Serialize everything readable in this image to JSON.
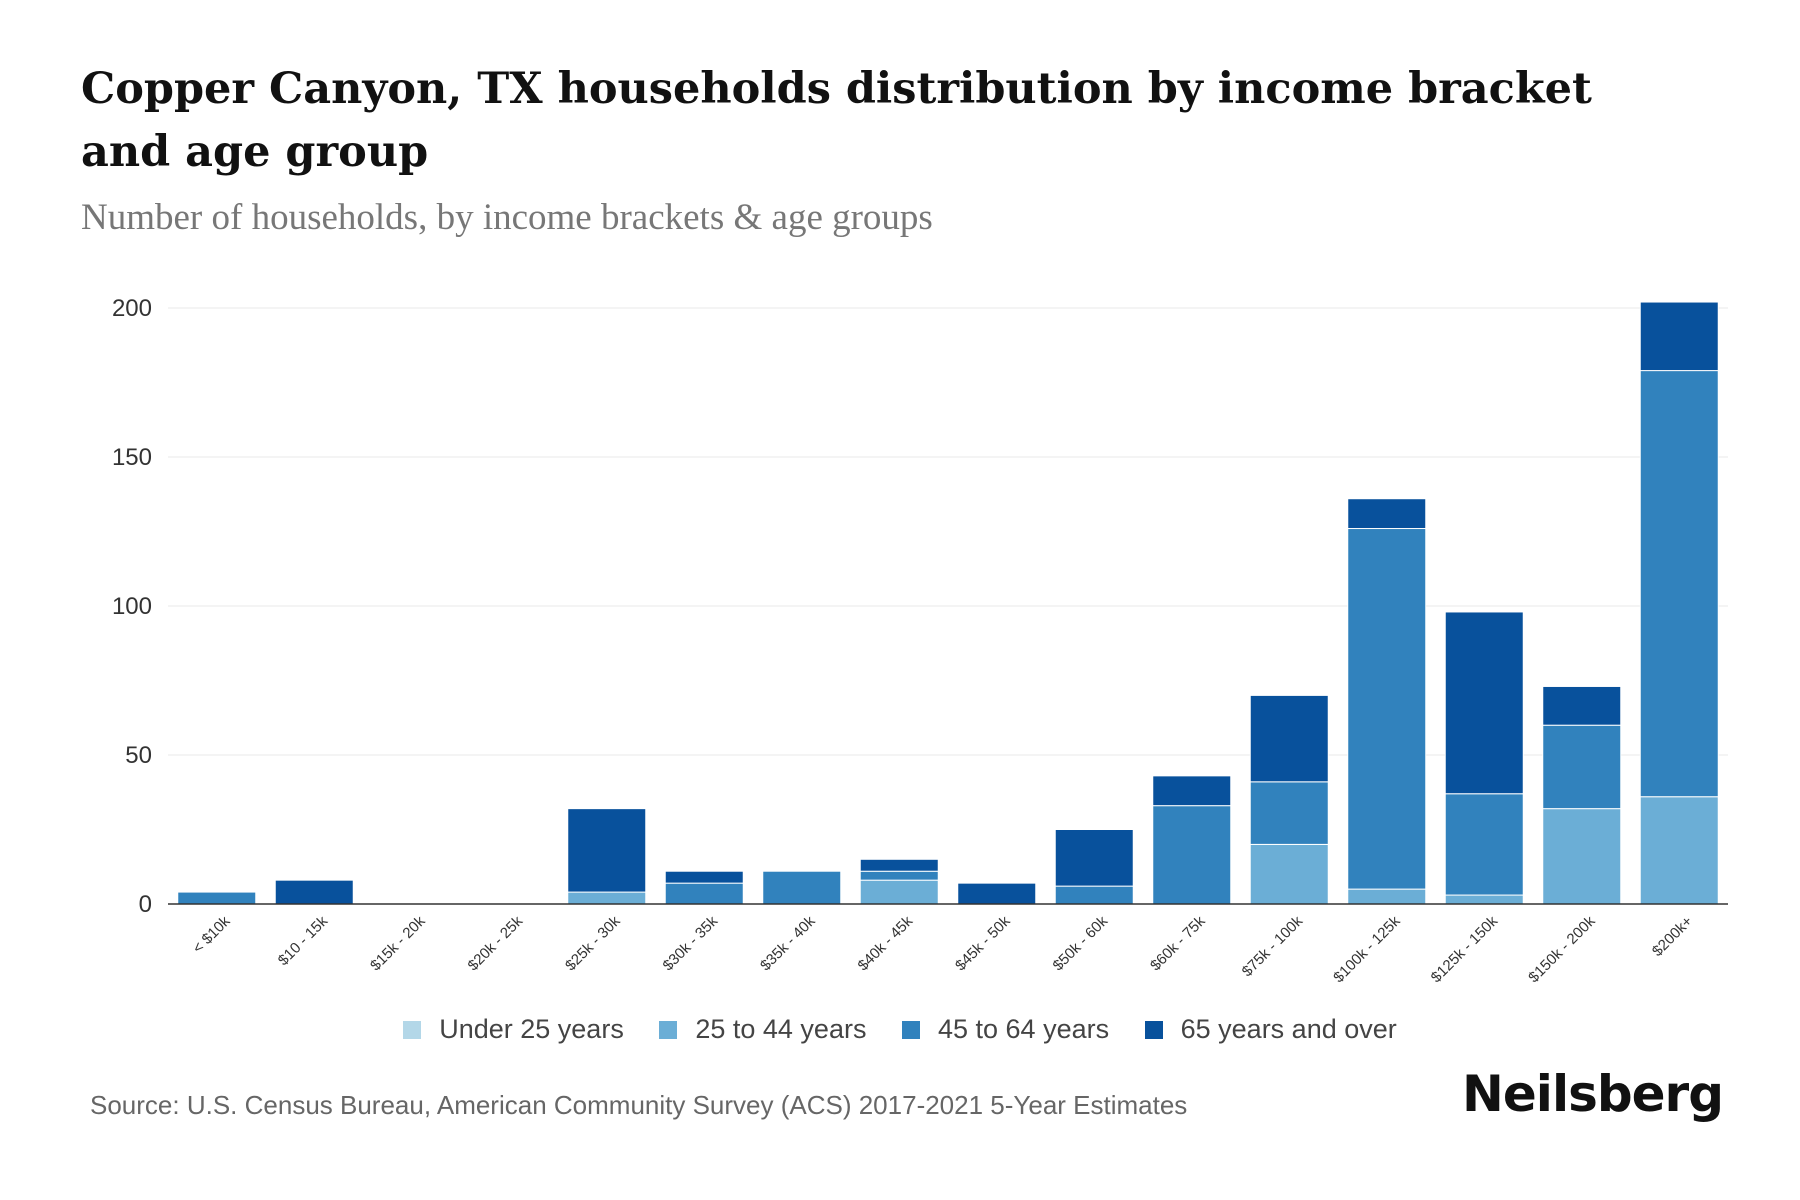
{
  "title": "Copper Canyon, TX households distribution by income bracket and age group",
  "subtitle": "Number of households, by income brackets & age groups",
  "source": "Source: U.S. Census Bureau, American Community Survey (ACS) 2017-2021 5-Year Estimates",
  "brand": "Neilsberg",
  "colors": {
    "under25": "#b3d7e8",
    "age25to44": "#6baed6",
    "age45to64": "#3182bd",
    "age65plus": "#08519c",
    "grid": "#e8e8e8",
    "axis": "#333333"
  },
  "legend": [
    {
      "label": "Under 25 years",
      "color": "#b3d7e8"
    },
    {
      "label": "25 to 44 years",
      "color": "#6baed6"
    },
    {
      "label": "45 to 64 years",
      "color": "#3182bd"
    },
    {
      "label": "65 years and over",
      "color": "#08519c"
    }
  ],
  "chart_data": {
    "type": "bar",
    "stacked": true,
    "title": "Copper Canyon, TX households distribution by income bracket and age group",
    "subtitle": "Number of households, by income brackets & age groups",
    "xlabel": "",
    "ylabel": "",
    "ylim": [
      0,
      200
    ],
    "yticks": [
      0,
      50,
      100,
      150,
      200
    ],
    "grid": true,
    "legend_position": "bottom",
    "categories": [
      "< $10k",
      "$10 - 15k",
      "$15k - 20k",
      "$20k - 25k",
      "$25k - 30k",
      "$30k - 35k",
      "$35k - 40k",
      "$40k - 45k",
      "$45k - 50k",
      "$50k - 60k",
      "$60k - 75k",
      "$75k - 100k",
      "$100k - 125k",
      "$125k - 150k",
      "$150k - 200k",
      "$200k+"
    ],
    "series": [
      {
        "name": "Under 25 years",
        "values": [
          0,
          0,
          0,
          0,
          0,
          0,
          0,
          0,
          0,
          0,
          0,
          0,
          0,
          0,
          0,
          0
        ]
      },
      {
        "name": "25 to 44 years",
        "values": [
          0,
          0,
          0,
          0,
          4,
          0,
          0,
          8,
          0,
          0,
          0,
          20,
          5,
          3,
          32,
          36
        ]
      },
      {
        "name": "45 to 64 years",
        "values": [
          4,
          0,
          0,
          0,
          0,
          7,
          11,
          3,
          0,
          6,
          33,
          21,
          121,
          34,
          28,
          143
        ]
      },
      {
        "name": "65 years and over",
        "values": [
          0,
          8,
          0,
          0,
          28,
          4,
          0,
          4,
          7,
          19,
          10,
          29,
          10,
          61,
          13,
          23
        ]
      }
    ]
  }
}
